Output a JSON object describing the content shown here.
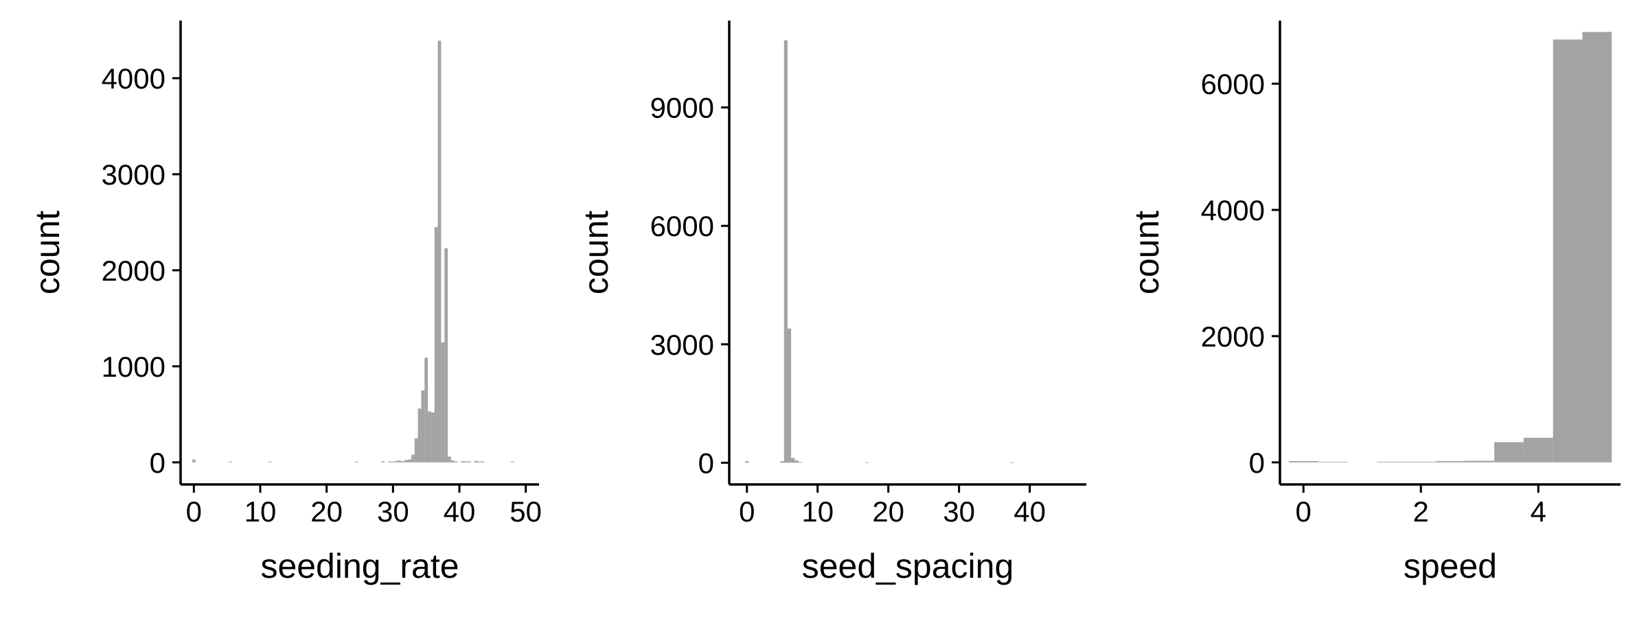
{
  "chart_data": [
    {
      "type": "bar",
      "xlabel": "seeding_rate",
      "ylabel": "count",
      "xlim": [
        -2,
        52
      ],
      "ylim": [
        -230,
        4600
      ],
      "xticks": [
        0,
        10,
        20,
        30,
        40,
        50
      ],
      "xtick_labels": [
        "0",
        "10",
        "20",
        "30",
        "40",
        "50"
      ],
      "yticks": [
        0,
        1000,
        2000,
        3000,
        4000
      ],
      "ytick_labels": [
        "0",
        "1000",
        "2000",
        "3000",
        "4000"
      ],
      "grid": false,
      "bin_width": 0.5,
      "bars": [
        {
          "x": 0,
          "count": 30
        },
        {
          "x": 5.5,
          "count": 8
        },
        {
          "x": 11.5,
          "count": 8
        },
        {
          "x": 24.5,
          "count": 8
        },
        {
          "x": 28.5,
          "count": 12
        },
        {
          "x": 29.5,
          "count": 10
        },
        {
          "x": 30,
          "count": 8
        },
        {
          "x": 30.5,
          "count": 15
        },
        {
          "x": 31,
          "count": 18
        },
        {
          "x": 31.5,
          "count": 12
        },
        {
          "x": 32,
          "count": 25
        },
        {
          "x": 32.5,
          "count": 30
        },
        {
          "x": 33,
          "count": 80
        },
        {
          "x": 33.5,
          "count": 250
        },
        {
          "x": 34,
          "count": 560
        },
        {
          "x": 34.5,
          "count": 750
        },
        {
          "x": 35,
          "count": 1090
        },
        {
          "x": 35.5,
          "count": 530
        },
        {
          "x": 36,
          "count": 520
        },
        {
          "x": 36.5,
          "count": 2450
        },
        {
          "x": 37,
          "count": 4390
        },
        {
          "x": 37.5,
          "count": 1250
        },
        {
          "x": 38,
          "count": 2230
        },
        {
          "x": 38.5,
          "count": 60
        },
        {
          "x": 39,
          "count": 20
        },
        {
          "x": 39.5,
          "count": 10
        },
        {
          "x": 40.5,
          "count": 12
        },
        {
          "x": 41,
          "count": 10
        },
        {
          "x": 41.5,
          "count": 10
        },
        {
          "x": 42.5,
          "count": 15
        },
        {
          "x": 43,
          "count": 8
        },
        {
          "x": 43.5,
          "count": 10
        },
        {
          "x": 48,
          "count": 8
        }
      ]
    },
    {
      "type": "bar",
      "xlabel": "seed_spacing",
      "ylabel": "count",
      "xlim": [
        -2.5,
        48
      ],
      "ylim": [
        -550,
        11200
      ],
      "xticks": [
        0,
        10,
        20,
        30,
        40
      ],
      "xtick_labels": [
        "0",
        "10",
        "20",
        "30",
        "40"
      ],
      "yticks": [
        0,
        3000,
        6000,
        9000
      ],
      "ytick_labels": [
        "0",
        "3000",
        "6000",
        "9000"
      ],
      "grid": false,
      "bin_width": 0.5,
      "bars": [
        {
          "x": 0,
          "count": 40
        },
        {
          "x": 5,
          "count": 40
        },
        {
          "x": 5.5,
          "count": 10700
        },
        {
          "x": 6,
          "count": 3400
        },
        {
          "x": 6.5,
          "count": 120
        },
        {
          "x": 7,
          "count": 60
        },
        {
          "x": 7.5,
          "count": 20
        },
        {
          "x": 17,
          "count": 10
        },
        {
          "x": 37.5,
          "count": 10
        }
      ]
    },
    {
      "type": "bar",
      "xlabel": "speed",
      "ylabel": "count",
      "xlim": [
        -0.4,
        5.4
      ],
      "ylim": [
        -350,
        7000
      ],
      "xticks": [
        0,
        2,
        4
      ],
      "xtick_labels": [
        "0",
        "2",
        "4"
      ],
      "yticks": [
        0,
        2000,
        4000,
        6000
      ],
      "ytick_labels": [
        "0",
        "2000",
        "4000",
        "6000"
      ],
      "grid": false,
      "bin_width": 0.5,
      "bars": [
        {
          "x": 0,
          "count": 20
        },
        {
          "x": 0.5,
          "count": 8
        },
        {
          "x": 1.5,
          "count": 10
        },
        {
          "x": 2,
          "count": 10
        },
        {
          "x": 2.5,
          "count": 20
        },
        {
          "x": 3,
          "count": 25
        },
        {
          "x": 3.5,
          "count": 320
        },
        {
          "x": 4,
          "count": 390
        },
        {
          "x": 4.5,
          "count": 6700
        },
        {
          "x": 5,
          "count": 6820
        }
      ]
    }
  ],
  "colors": {
    "bar_fill": "#a3a3a3",
    "axis": "#000000",
    "background": "#ffffff"
  }
}
